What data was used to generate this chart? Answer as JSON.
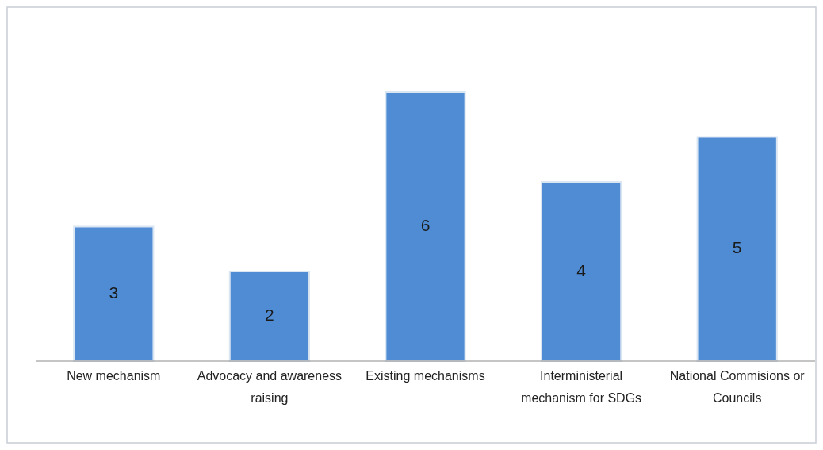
{
  "chart_data": {
    "type": "bar",
    "categories": [
      "New mechanism",
      "Advocacy and awareness raising",
      "Existing mechanisms",
      "Interministerial mechanism for SDGs",
      "National Commisions or Councils"
    ],
    "values": [
      3,
      2,
      6,
      4,
      5
    ],
    "color": "#4f8cd4",
    "data_labels": true
  }
}
